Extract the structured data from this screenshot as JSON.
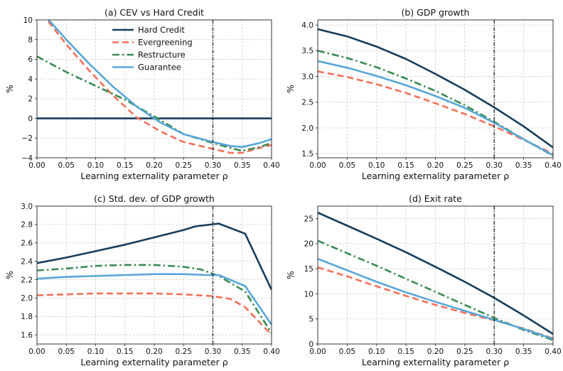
{
  "colors": {
    "hard_credit": "#173d5c",
    "evergreening": "#f2705a",
    "restructure": "#3a8a52",
    "guarantee": "#58a6d6",
    "grid": "#cfcfcf",
    "vline": "#222222"
  },
  "chart_data": [
    {
      "type": "line",
      "title": "(a) CEV vs Hard Credit",
      "xlabel": "Learning externality parameter ρ",
      "ylabel": "%",
      "xlim": [
        0.0,
        0.4
      ],
      "ylim": [
        -4,
        10
      ],
      "xticks": [
        "0.00",
        "0.05",
        "0.10",
        "0.15",
        "0.20",
        "0.25",
        "0.30",
        "0.35",
        "0.40"
      ],
      "yticks": [
        "−4",
        "−2",
        "0",
        "2",
        "4",
        "6",
        "8",
        "10"
      ],
      "vline": 0.3,
      "legend": "top-center",
      "grid": true,
      "series": [
        {
          "name": "Hard Credit",
          "key": "hard_credit",
          "dash": "solid",
          "x": [
            0.0,
            0.1,
            0.2,
            0.3,
            0.4
          ],
          "y": [
            0,
            0,
            0,
            0,
            0
          ]
        },
        {
          "name": "Evergreening",
          "key": "evergreening",
          "dash": "dashed",
          "x": [
            0.0,
            0.02,
            0.05,
            0.09,
            0.13,
            0.17,
            0.21,
            0.25,
            0.3,
            0.33,
            0.35,
            0.38,
            0.4
          ],
          "y": [
            11.5,
            9.8,
            7.5,
            4.8,
            2.3,
            0.1,
            -1.3,
            -2.4,
            -3.1,
            -3.5,
            -3.5,
            -3.0,
            -2.7
          ]
        },
        {
          "name": "Restructure",
          "key": "restructure",
          "dash": "dashdot",
          "x": [
            0.0,
            0.05,
            0.1,
            0.15,
            0.2,
            0.25,
            0.3,
            0.33,
            0.35,
            0.38,
            0.4
          ],
          "y": [
            6.3,
            4.7,
            3.3,
            1.9,
            0.2,
            -1.6,
            -2.5,
            -3.0,
            -3.3,
            -2.9,
            -2.5
          ]
        },
        {
          "name": "Guarantee",
          "key": "guarantee",
          "dash": "solid",
          "x": [
            0.0,
            0.02,
            0.05,
            0.09,
            0.13,
            0.17,
            0.21,
            0.25,
            0.3,
            0.33,
            0.35,
            0.38,
            0.4
          ],
          "y": [
            11.5,
            10.0,
            8.0,
            5.5,
            3.2,
            1.2,
            -0.4,
            -1.6,
            -2.4,
            -2.8,
            -2.9,
            -2.5,
            -2.1
          ]
        }
      ]
    },
    {
      "type": "line",
      "title": "(b) GDP growth",
      "xlabel": "Learning externality parameter ρ",
      "ylabel": "%",
      "xlim": [
        0.0,
        0.4
      ],
      "ylim": [
        1.42,
        4.1
      ],
      "xticks": [
        "0.00",
        "0.05",
        "0.10",
        "0.15",
        "0.20",
        "0.25",
        "0.30",
        "0.35",
        "0.40"
      ],
      "yticks": [
        "1.5",
        "2.0",
        "2.5",
        "3.0",
        "3.5",
        "4.0"
      ],
      "vline": 0.3,
      "grid": true,
      "series": [
        {
          "name": "Hard Credit",
          "key": "hard_credit",
          "dash": "solid",
          "x": [
            0.0,
            0.05,
            0.1,
            0.15,
            0.2,
            0.25,
            0.3,
            0.35,
            0.4
          ],
          "y": [
            3.92,
            3.78,
            3.58,
            3.34,
            3.05,
            2.74,
            2.4,
            2.03,
            1.62
          ]
        },
        {
          "name": "Evergreening",
          "key": "evergreening",
          "dash": "dashed",
          "x": [
            0.0,
            0.05,
            0.1,
            0.15,
            0.2,
            0.25,
            0.3,
            0.35,
            0.4
          ],
          "y": [
            3.1,
            2.99,
            2.85,
            2.68,
            2.48,
            2.27,
            2.03,
            1.77,
            1.5
          ]
        },
        {
          "name": "Restructure",
          "key": "restructure",
          "dash": "dashdot",
          "x": [
            0.0,
            0.05,
            0.1,
            0.15,
            0.2,
            0.25,
            0.3,
            0.35,
            0.4
          ],
          "y": [
            3.5,
            3.36,
            3.18,
            2.96,
            2.72,
            2.44,
            2.12,
            1.78,
            1.46
          ]
        },
        {
          "name": "Guarantee",
          "key": "guarantee",
          "dash": "solid",
          "x": [
            0.0,
            0.05,
            0.1,
            0.15,
            0.2,
            0.25,
            0.3,
            0.35,
            0.4
          ],
          "y": [
            3.3,
            3.17,
            3.01,
            2.83,
            2.62,
            2.39,
            2.1,
            1.78,
            1.47
          ]
        }
      ]
    },
    {
      "type": "line",
      "title": "(c) Std. dev. of GDP growth",
      "xlabel": "Learning externality parameter ρ",
      "ylabel": "%",
      "xlim": [
        0.0,
        0.4
      ],
      "ylim": [
        1.5,
        3.0
      ],
      "xticks": [
        "0.00",
        "0.05",
        "0.10",
        "0.15",
        "0.20",
        "0.25",
        "0.30",
        "0.35",
        "0.40"
      ],
      "yticks": [
        "1.6",
        "1.8",
        "2.0",
        "2.2",
        "2.4",
        "2.6",
        "2.8",
        "3.0"
      ],
      "vline": 0.3,
      "grid": true,
      "series": [
        {
          "name": "Hard Credit",
          "key": "hard_credit",
          "dash": "solid",
          "x": [
            0.0,
            0.05,
            0.1,
            0.15,
            0.2,
            0.25,
            0.27,
            0.31,
            0.355,
            0.4
          ],
          "y": [
            2.38,
            2.44,
            2.51,
            2.58,
            2.66,
            2.74,
            2.78,
            2.81,
            2.7,
            2.09
          ]
        },
        {
          "name": "Evergreening",
          "key": "evergreening",
          "dash": "dashed",
          "x": [
            0.0,
            0.05,
            0.1,
            0.15,
            0.2,
            0.25,
            0.3,
            0.33,
            0.355,
            0.4
          ],
          "y": [
            2.03,
            2.04,
            2.05,
            2.05,
            2.05,
            2.04,
            2.02,
            1.99,
            1.9,
            1.6
          ]
        },
        {
          "name": "Restructure",
          "key": "restructure",
          "dash": "dashdot",
          "x": [
            0.0,
            0.05,
            0.1,
            0.15,
            0.2,
            0.25,
            0.28,
            0.31,
            0.355,
            0.4
          ],
          "y": [
            2.3,
            2.32,
            2.35,
            2.36,
            2.36,
            2.34,
            2.31,
            2.24,
            2.07,
            1.62
          ]
        },
        {
          "name": "Guarantee",
          "key": "guarantee",
          "dash": "solid",
          "x": [
            0.0,
            0.05,
            0.1,
            0.15,
            0.2,
            0.25,
            0.29,
            0.31,
            0.355,
            0.4
          ],
          "y": [
            2.21,
            2.23,
            2.24,
            2.25,
            2.26,
            2.26,
            2.25,
            2.25,
            2.13,
            1.71
          ]
        }
      ]
    },
    {
      "type": "line",
      "title": "(d) Exit rate",
      "xlabel": "Learning externality parameter ρ",
      "ylabel": "%",
      "xlim": [
        0.0,
        0.4
      ],
      "ylim": [
        0,
        27.5
      ],
      "xticks": [
        "0.00",
        "0.05",
        "0.10",
        "0.15",
        "0.20",
        "0.25",
        "0.30",
        "0.35",
        "0.40"
      ],
      "yticks": [
        "0",
        "5",
        "10",
        "15",
        "20",
        "25"
      ],
      "vline": 0.3,
      "grid": true,
      "series": [
        {
          "name": "Hard Credit",
          "key": "hard_credit",
          "dash": "solid",
          "x": [
            0.0,
            0.05,
            0.1,
            0.15,
            0.2,
            0.25,
            0.3,
            0.35,
            0.4
          ],
          "y": [
            26.2,
            23.6,
            21.0,
            18.3,
            15.4,
            12.4,
            9.2,
            5.7,
            2.0
          ]
        },
        {
          "name": "Evergreening",
          "key": "evergreening",
          "dash": "dashed",
          "x": [
            0.0,
            0.05,
            0.1,
            0.15,
            0.2,
            0.25,
            0.3,
            0.35,
            0.4
          ],
          "y": [
            15.3,
            13.5,
            11.5,
            9.6,
            7.8,
            6.2,
            4.7,
            3.1,
            1.1
          ]
        },
        {
          "name": "Restructure",
          "key": "restructure",
          "dash": "dashdot",
          "x": [
            0.0,
            0.05,
            0.1,
            0.15,
            0.2,
            0.25,
            0.3,
            0.35,
            0.4
          ],
          "y": [
            20.6,
            18.1,
            15.6,
            13.0,
            10.4,
            7.8,
            5.2,
            2.8,
            0.8
          ]
        },
        {
          "name": "Guarantee",
          "key": "guarantee",
          "dash": "solid",
          "x": [
            0.0,
            0.05,
            0.1,
            0.15,
            0.2,
            0.25,
            0.3,
            0.35,
            0.4
          ],
          "y": [
            17.0,
            14.7,
            12.4,
            10.3,
            8.4,
            6.6,
            4.8,
            3.0,
            1.0
          ]
        }
      ]
    }
  ]
}
